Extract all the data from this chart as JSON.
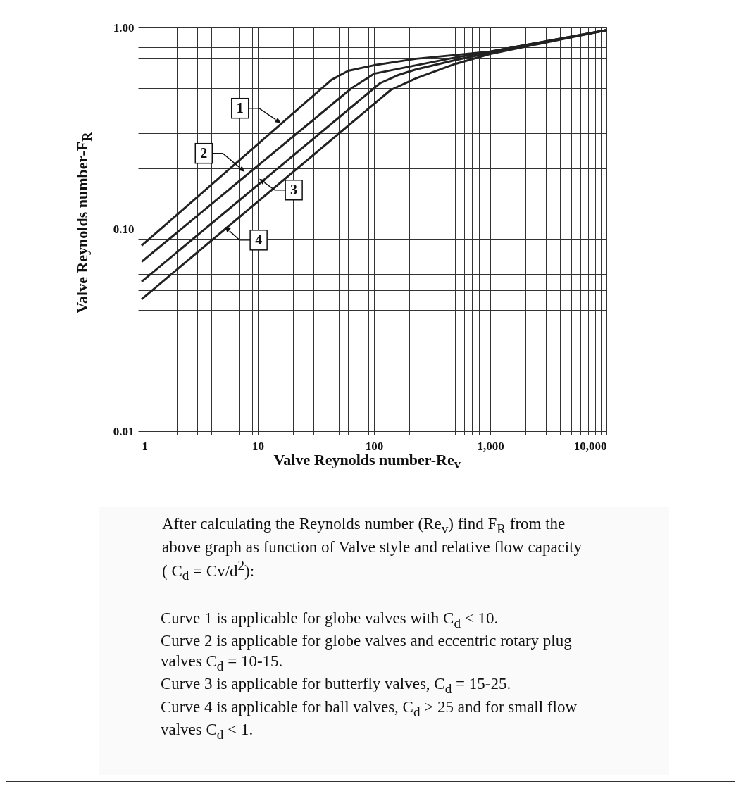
{
  "chart_data": {
    "type": "line",
    "xlabel": "Valve Reynolds number-Re$_{v}$",
    "ylabel": "Valve Reynolds number-F$_{R}$",
    "series": [
      {
        "color": "#222222",
        "x": [
          1,
          43,
          60,
          100,
          230,
          1000,
          10000
        ],
        "values": [
          0.083,
          0.55,
          0.61,
          0.65,
          0.7,
          0.76,
          0.97
        ]
      },
      {
        "color": "#222222",
        "x": [
          1,
          64,
          100,
          230,
          500,
          1000,
          10000
        ],
        "values": [
          0.069,
          0.5,
          0.59,
          0.65,
          0.71,
          0.76,
          0.97
        ]
      },
      {
        "color": "#222222",
        "x": [
          1,
          113,
          160,
          230,
          500,
          1000,
          10000
        ],
        "values": [
          0.055,
          0.53,
          0.58,
          0.62,
          0.69,
          0.75,
          0.97
        ]
      },
      {
        "color": "#222222",
        "x": [
          1,
          139,
          230,
          500,
          1000,
          10000
        ],
        "values": [
          0.045,
          0.49,
          0.56,
          0.66,
          0.74,
          0.97
        ]
      }
    ],
    "log": "xy",
    "grid": true,
    "legend": false,
    "marker": "none",
    "line_style": "solid",
    "xlim": [
      1,
      10000
    ],
    "xticks": [
      1,
      10,
      100,
      {
        "value": 1000,
        "label": "1,000"
      },
      {
        "value": 10000,
        "label": "10,000"
      }
    ],
    "ylim": [
      0.01,
      1
    ],
    "yticks": [
      {
        "value": 0.01,
        "label": "0.01"
      },
      {
        "value": 0.1,
        "label": "0.10"
      },
      {
        "value": 1,
        "label": "1.00"
      }
    ],
    "annotations": [
      {
        "text": "1",
        "x": 15.8,
        "y": 0.336
      },
      {
        "text": "2",
        "x": 7.7,
        "y": 0.193
      },
      {
        "text": "3",
        "x": 10.3,
        "y": 0.178
      },
      {
        "text": "4",
        "x": 5.2,
        "y": 0.103
      },
      "After calculating the Reynolds number (Re$_{v}$) find F$_{R}$ from the above graph as function of  Valve style and relative flow capacity ( C$_{d}$ = Cv/d$^{2}$):",
      "Curve 1 is applicable for globe valves with C$_{d}$ < 10.",
      "Curve 2 is applicable for globe valves and eccentric rotary plug valves C$_{d}$ = 10-15.",
      "Curve 3 is applicable for butterfly valves, C$_{d}$ = 15-25.",
      "Curve 4 is applicable for ball valves, C$_{d}$ > 25 and for small flow valves C$_{d}$ < 1."
    ]
  }
}
